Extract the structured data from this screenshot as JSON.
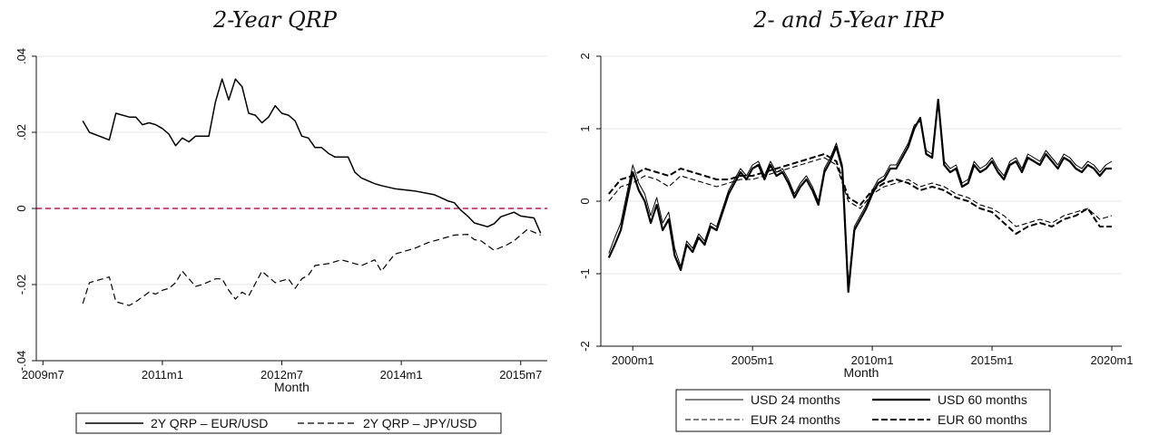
{
  "chart_data": [
    {
      "type": "line",
      "title": "2-Year QRP",
      "xlabel": "Month",
      "ylabel": "",
      "xlim": [
        "2009-06",
        "2015-11"
      ],
      "ylim": [
        -0.04,
        0.04
      ],
      "xticks": [
        {
          "value": "2009-07",
          "label": "2009m7"
        },
        {
          "value": "2011-01",
          "label": "2011m1"
        },
        {
          "value": "2012-07",
          "label": "2012m7"
        },
        {
          "value": "2014-01",
          "label": "2014m1"
        },
        {
          "value": "2015-07",
          "label": "2015m7"
        }
      ],
      "yticks": [
        {
          "value": 0.04,
          "label": ".04"
        },
        {
          "value": 0.02,
          "label": ".02"
        },
        {
          "value": 0,
          "label": "0"
        },
        {
          "value": -0.02,
          "label": "-.02"
        },
        {
          "value": -0.04,
          "label": "-.04"
        }
      ],
      "grid": true,
      "reference_line": {
        "y": 0,
        "color": "#c0175a",
        "style": "dashed"
      },
      "legend_position": "bottom",
      "series": [
        {
          "name": "2Y QRP – EUR/USD",
          "style": "solid",
          "color": "#000000",
          "x": [
            "2010-01",
            "2010-02",
            "2010-05",
            "2010-06",
            "2010-08",
            "2010-09",
            "2010-10",
            "2010-11",
            "2010-12",
            "2011-01",
            "2011-02",
            "2011-03",
            "2011-04",
            "2011-05",
            "2011-06",
            "2011-08",
            "2011-09",
            "2011-10",
            "2011-11",
            "2011-12",
            "2012-01",
            "2012-02",
            "2012-03",
            "2012-04",
            "2012-05",
            "2012-06",
            "2012-07",
            "2012-08",
            "2012-09",
            "2012-10",
            "2012-11",
            "2012-12",
            "2013-01",
            "2013-02",
            "2013-03",
            "2013-05",
            "2013-06",
            "2013-07",
            "2013-09",
            "2013-10",
            "2013-12",
            "2014-03",
            "2014-06",
            "2014-07",
            "2014-08",
            "2014-09",
            "2014-10",
            "2014-11",
            "2014-12",
            "2015-02",
            "2015-03",
            "2015-04",
            "2015-06",
            "2015-07",
            "2015-09",
            "2015-10"
          ],
          "values": [
            0.023,
            0.02,
            0.018,
            0.025,
            0.024,
            0.024,
            0.022,
            0.0225,
            0.022,
            0.021,
            0.0195,
            0.0165,
            0.0185,
            0.0175,
            0.019,
            0.019,
            0.028,
            0.034,
            0.0285,
            0.034,
            0.032,
            0.025,
            0.0245,
            0.0225,
            0.024,
            0.027,
            0.025,
            0.0245,
            0.023,
            0.019,
            0.0185,
            0.016,
            0.016,
            0.0145,
            0.0135,
            0.0135,
            0.0095,
            0.008,
            0.0065,
            0.006,
            0.0052,
            0.0046,
            0.0036,
            0.0028,
            0.002,
            0.0015,
            -0.0005,
            -0.002,
            -0.0038,
            -0.0048,
            -0.004,
            -0.0022,
            -0.001,
            -0.002,
            -0.0025,
            -0.0065
          ]
        },
        {
          "name": "2Y QRP – JPY/USD",
          "style": "dashed",
          "color": "#000000",
          "x": [
            "2010-01",
            "2010-02",
            "2010-03",
            "2010-05",
            "2010-06",
            "2010-08",
            "2010-09",
            "2010-11",
            "2010-12",
            "2011-01",
            "2011-02",
            "2011-03",
            "2011-04",
            "2011-06",
            "2011-07",
            "2011-09",
            "2011-10",
            "2011-11",
            "2011-12",
            "2012-01",
            "2012-02",
            "2012-04",
            "2012-06",
            "2012-08",
            "2012-09",
            "2012-10",
            "2012-11",
            "2012-12",
            "2013-02",
            "2013-04",
            "2013-06",
            "2013-07",
            "2013-09",
            "2013-10",
            "2013-12",
            "2014-01",
            "2014-03",
            "2014-05",
            "2014-06",
            "2014-08",
            "2014-09",
            "2014-11",
            "2014-12",
            "2015-01",
            "2015-03",
            "2015-05",
            "2015-06",
            "2015-08",
            "2015-10"
          ],
          "values": [
            -0.025,
            -0.0195,
            -0.019,
            -0.018,
            -0.0245,
            -0.0255,
            -0.0245,
            -0.022,
            -0.0225,
            -0.0215,
            -0.021,
            -0.0195,
            -0.0165,
            -0.0205,
            -0.02,
            -0.0185,
            -0.0185,
            -0.0215,
            -0.0238,
            -0.022,
            -0.023,
            -0.0165,
            -0.0195,
            -0.0185,
            -0.021,
            -0.0185,
            -0.0175,
            -0.015,
            -0.0145,
            -0.0135,
            -0.0145,
            -0.015,
            -0.0135,
            -0.0165,
            -0.012,
            -0.0115,
            -0.0105,
            -0.009,
            -0.0085,
            -0.0075,
            -0.007,
            -0.0068,
            -0.0082,
            -0.0085,
            -0.011,
            -0.0095,
            -0.0085,
            -0.0055,
            -0.007
          ]
        }
      ]
    },
    {
      "type": "line",
      "title": "2- and 5-Year IRP",
      "xlabel": "Month",
      "ylabel": "",
      "xlim": [
        "1998-09",
        "2020-06"
      ],
      "ylim": [
        -2,
        2
      ],
      "xticks": [
        {
          "value": "2000-01",
          "label": "2000m1"
        },
        {
          "value": "2005-01",
          "label": "2005m1"
        },
        {
          "value": "2010-01",
          "label": "2010m1"
        },
        {
          "value": "2015-01",
          "label": "2015m1"
        },
        {
          "value": "2020-01",
          "label": "2020m1"
        }
      ],
      "yticks": [
        {
          "value": 2,
          "label": "2"
        },
        {
          "value": 1,
          "label": "1"
        },
        {
          "value": 0,
          "label": "0"
        },
        {
          "value": -1,
          "label": "-1"
        },
        {
          "value": -2,
          "label": "-2"
        }
      ],
      "grid": true,
      "legend_position": "bottom",
      "series": [
        {
          "name": "USD 24 months",
          "style": "solid-thin",
          "color": "#000000",
          "x": [
            "1999-01",
            "1999-04",
            "1999-07",
            "2000-01",
            "2000-04",
            "2000-07",
            "2000-10",
            "2001-01",
            "2001-04",
            "2001-07",
            "2001-10",
            "2002-01",
            "2002-04",
            "2002-07",
            "2002-10",
            "2003-01",
            "2003-04",
            "2003-07",
            "2003-10",
            "2004-01",
            "2004-04",
            "2004-07",
            "2004-10",
            "2005-01",
            "2005-04",
            "2005-07",
            "2005-10",
            "2006-01",
            "2006-04",
            "2006-07",
            "2006-10",
            "2007-01",
            "2007-04",
            "2007-07",
            "2007-10",
            "2008-01",
            "2008-04",
            "2008-07",
            "2008-10",
            "2009-01",
            "2009-04",
            "2009-07",
            "2009-10",
            "2010-01",
            "2010-04",
            "2010-07",
            "2010-10",
            "2011-01",
            "2011-04",
            "2011-07",
            "2011-10",
            "2012-01",
            "2012-04",
            "2012-07",
            "2012-10",
            "2013-01",
            "2013-04",
            "2013-07",
            "2013-10",
            "2014-01",
            "2014-04",
            "2014-07",
            "2014-10",
            "2015-01",
            "2015-04",
            "2015-07",
            "2015-10",
            "2016-01",
            "2016-04",
            "2016-07",
            "2016-10",
            "2017-01",
            "2017-04",
            "2017-07",
            "2017-10",
            "2018-01",
            "2018-04",
            "2018-07",
            "2018-10",
            "2019-01",
            "2019-04",
            "2019-07",
            "2019-10",
            "2020-01"
          ],
          "values": [
            -0.72,
            -0.5,
            -0.3,
            0.5,
            0.25,
            0.1,
            -0.2,
            0.05,
            -0.3,
            -0.15,
            -0.65,
            -0.9,
            -0.55,
            -0.65,
            -0.45,
            -0.55,
            -0.3,
            -0.35,
            -0.1,
            0.15,
            0.3,
            0.45,
            0.35,
            0.5,
            0.55,
            0.35,
            0.55,
            0.4,
            0.45,
            0.3,
            0.1,
            0.25,
            0.35,
            0.2,
            0.0,
            0.45,
            0.6,
            0.8,
            0.5,
            -1.15,
            -0.35,
            -0.2,
            -0.05,
            0.15,
            0.3,
            0.35,
            0.5,
            0.5,
            0.65,
            0.8,
            1.05,
            1.1,
            0.7,
            0.65,
            1.35,
            0.55,
            0.45,
            0.5,
            0.25,
            0.3,
            0.55,
            0.45,
            0.5,
            0.6,
            0.45,
            0.35,
            0.55,
            0.6,
            0.45,
            0.65,
            0.6,
            0.55,
            0.7,
            0.6,
            0.5,
            0.65,
            0.6,
            0.5,
            0.45,
            0.55,
            0.5,
            0.4,
            0.5,
            0.55
          ]
        },
        {
          "name": "USD 60 months",
          "style": "solid-thick",
          "color": "#000000",
          "x": [
            "1999-01",
            "1999-04",
            "1999-07",
            "2000-01",
            "2000-04",
            "2000-07",
            "2000-10",
            "2001-01",
            "2001-04",
            "2001-07",
            "2001-10",
            "2002-01",
            "2002-04",
            "2002-07",
            "2002-10",
            "2003-01",
            "2003-04",
            "2003-07",
            "2003-10",
            "2004-01",
            "2004-04",
            "2004-07",
            "2004-10",
            "2005-01",
            "2005-04",
            "2005-07",
            "2005-10",
            "2006-01",
            "2006-04",
            "2006-07",
            "2006-10",
            "2007-01",
            "2007-04",
            "2007-07",
            "2007-10",
            "2008-01",
            "2008-04",
            "2008-07",
            "2008-10",
            "2009-01",
            "2009-04",
            "2009-07",
            "2009-10",
            "2010-01",
            "2010-04",
            "2010-07",
            "2010-10",
            "2011-01",
            "2011-04",
            "2011-07",
            "2011-10",
            "2012-01",
            "2012-04",
            "2012-07",
            "2012-10",
            "2013-01",
            "2013-04",
            "2013-07",
            "2013-10",
            "2014-01",
            "2014-04",
            "2014-07",
            "2014-10",
            "2015-01",
            "2015-04",
            "2015-07",
            "2015-10",
            "2016-01",
            "2016-04",
            "2016-07",
            "2016-10",
            "2017-01",
            "2017-04",
            "2017-07",
            "2017-10",
            "2018-01",
            "2018-04",
            "2018-07",
            "2018-10",
            "2019-01",
            "2019-04",
            "2019-07",
            "2019-10",
            "2020-01"
          ],
          "values": [
            -0.78,
            -0.6,
            -0.4,
            0.4,
            0.15,
            0.0,
            -0.3,
            -0.05,
            -0.4,
            -0.25,
            -0.75,
            -0.95,
            -0.6,
            -0.7,
            -0.5,
            -0.6,
            -0.35,
            -0.4,
            -0.15,
            0.1,
            0.25,
            0.4,
            0.3,
            0.45,
            0.5,
            0.3,
            0.5,
            0.35,
            0.4,
            0.25,
            0.05,
            0.2,
            0.3,
            0.15,
            -0.05,
            0.4,
            0.55,
            0.75,
            0.45,
            -1.25,
            -0.4,
            -0.25,
            -0.1,
            0.1,
            0.25,
            0.3,
            0.45,
            0.45,
            0.6,
            0.75,
            1.0,
            1.15,
            0.65,
            0.6,
            1.4,
            0.5,
            0.4,
            0.45,
            0.2,
            0.25,
            0.5,
            0.4,
            0.45,
            0.55,
            0.4,
            0.3,
            0.5,
            0.55,
            0.4,
            0.6,
            0.55,
            0.5,
            0.65,
            0.55,
            0.45,
            0.6,
            0.55,
            0.45,
            0.4,
            0.5,
            0.45,
            0.35,
            0.45,
            0.45
          ]
        },
        {
          "name": "EUR 24 months",
          "style": "dashed-thin",
          "color": "#000000",
          "x": [
            "1999-01",
            "1999-07",
            "2000-01",
            "2000-07",
            "2001-01",
            "2001-07",
            "2002-01",
            "2002-07",
            "2003-01",
            "2003-07",
            "2004-01",
            "2004-07",
            "2005-01",
            "2005-07",
            "2006-01",
            "2006-07",
            "2007-01",
            "2007-07",
            "2008-01",
            "2008-07",
            "2009-01",
            "2009-07",
            "2010-01",
            "2010-07",
            "2011-01",
            "2011-07",
            "2012-01",
            "2012-07",
            "2013-01",
            "2013-07",
            "2014-01",
            "2014-07",
            "2015-01",
            "2015-07",
            "2016-01",
            "2016-07",
            "2017-01",
            "2017-07",
            "2018-01",
            "2018-07",
            "2019-01",
            "2019-07",
            "2020-01"
          ],
          "values": [
            0.0,
            0.2,
            0.25,
            0.35,
            0.3,
            0.2,
            0.35,
            0.3,
            0.25,
            0.2,
            0.25,
            0.3,
            0.3,
            0.35,
            0.4,
            0.45,
            0.5,
            0.55,
            0.6,
            0.5,
            0.0,
            -0.1,
            0.1,
            0.2,
            0.25,
            0.3,
            0.2,
            0.25,
            0.2,
            0.1,
            0.05,
            -0.05,
            -0.1,
            -0.2,
            -0.35,
            -0.3,
            -0.25,
            -0.3,
            -0.2,
            -0.15,
            -0.1,
            -0.25,
            -0.2
          ]
        },
        {
          "name": "EUR 60 months",
          "style": "dashed-thick",
          "color": "#000000",
          "x": [
            "1999-01",
            "1999-07",
            "2000-01",
            "2000-07",
            "2001-01",
            "2001-07",
            "2002-01",
            "2002-07",
            "2003-01",
            "2003-07",
            "2004-01",
            "2004-07",
            "2005-01",
            "2005-07",
            "2006-01",
            "2006-07",
            "2007-01",
            "2007-07",
            "2008-01",
            "2008-07",
            "2009-01",
            "2009-07",
            "2010-01",
            "2010-07",
            "2011-01",
            "2011-07",
            "2012-01",
            "2012-07",
            "2013-01",
            "2013-07",
            "2014-01",
            "2014-07",
            "2015-01",
            "2015-07",
            "2016-01",
            "2016-07",
            "2017-01",
            "2017-07",
            "2018-01",
            "2018-07",
            "2019-01",
            "2019-07",
            "2020-01"
          ],
          "values": [
            0.1,
            0.3,
            0.35,
            0.45,
            0.4,
            0.35,
            0.45,
            0.4,
            0.35,
            0.3,
            0.3,
            0.35,
            0.35,
            0.4,
            0.45,
            0.5,
            0.55,
            0.6,
            0.65,
            0.55,
            0.05,
            -0.05,
            0.15,
            0.25,
            0.3,
            0.25,
            0.15,
            0.2,
            0.15,
            0.05,
            0.0,
            -0.1,
            -0.15,
            -0.3,
            -0.45,
            -0.35,
            -0.3,
            -0.35,
            -0.25,
            -0.2,
            -0.1,
            -0.35,
            -0.35
          ]
        }
      ]
    }
  ]
}
